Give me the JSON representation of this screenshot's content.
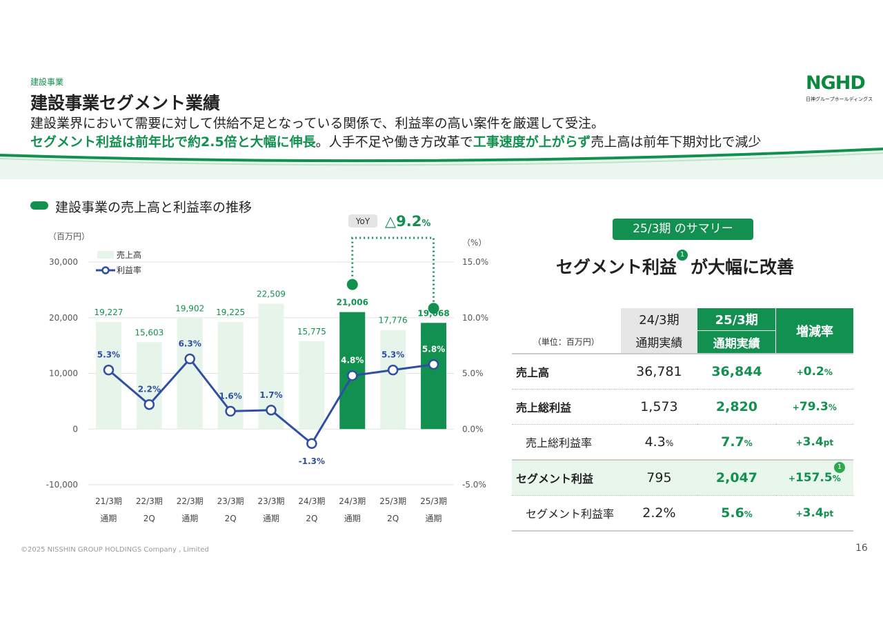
{
  "header": {
    "section_label": "建設事業",
    "title": "建設事業セグメント業績",
    "subtitle_1": "建設業界において需要に対して供給不足となっている関係で、利益率の高い案件を厳選して受注。",
    "subtitle_2_parts": [
      {
        "text": "セグメント利益は前年比で約2.5倍と大幅に伸長",
        "emphasis": true
      },
      {
        "text": "。人手不足や働き方改革で",
        "emphasis": false
      },
      {
        "text": "工事速度が上がらず",
        "emphasis": true
      },
      {
        "text": "売上高は前年下期対比で減少",
        "emphasis": false
      }
    ]
  },
  "logo": {
    "mark": "NGHD",
    "subtitle": "日神グループホールディングス"
  },
  "chart_section": {
    "heading": "建設事業の売上高と利益率の推移"
  },
  "chart_data": {
    "type": "bar+line",
    "categories": [
      [
        "21/3期",
        "通期"
      ],
      [
        "22/3期",
        "2Q"
      ],
      [
        "22/3期",
        "通期"
      ],
      [
        "23/3期",
        "2Q"
      ],
      [
        "23/3期",
        "通期"
      ],
      [
        "24/3期",
        "2Q"
      ],
      [
        "24/3期",
        "通期"
      ],
      [
        "25/3期",
        "2Q"
      ],
      [
        "25/3期",
        "通期"
      ]
    ],
    "series": [
      {
        "name": "売上高",
        "type": "bar",
        "axis": "left",
        "values": [
          19227,
          15603,
          19902,
          19225,
          22509,
          15775,
          21006,
          17776,
          19068
        ],
        "labels": [
          "19,227",
          "15,603",
          "19,902",
          "19,225",
          "22,509",
          "15,775",
          "21,006",
          "17,776",
          "19,068"
        ],
        "highlighted_indices": [
          6,
          8
        ]
      },
      {
        "name": "利益率",
        "type": "line",
        "axis": "right",
        "values": [
          5.3,
          2.2,
          6.3,
          1.6,
          1.7,
          -1.3,
          4.8,
          5.3,
          5.8
        ],
        "labels": [
          "5.3%",
          "2.2%",
          "6.3%",
          "1.6%",
          "1.7%",
          "-1.3%",
          "4.8%",
          "5.3%",
          "5.8%"
        ]
      }
    ],
    "left_axis": {
      "unit": "（百万円）",
      "range": [
        -10000,
        30000
      ],
      "ticks": [
        "30,000",
        "20,000",
        "10,000",
        "0",
        "-10,000"
      ]
    },
    "right_axis": {
      "unit": "（%）",
      "range": [
        -5.0,
        15.0
      ],
      "ticks": [
        "15.0%",
        "10.0%",
        "5.0%",
        "0.0%",
        "-5.0%"
      ]
    },
    "legend": {
      "placement": "top-left"
    },
    "annotation": {
      "badge": "YoY",
      "value": "△9.2",
      "unit": "%",
      "between": [
        6,
        8
      ]
    },
    "colors": {
      "bar": "#e6f4ea",
      "bar_highlight": "#11904f",
      "line": "#2f4fa3",
      "label_green": "#11904f",
      "label_blue": "#2f4fa3"
    }
  },
  "summary": {
    "pill": "25/3期 のサマリー",
    "headline_before": "セグメント利益",
    "headline_note": "1",
    "headline_after": "が大幅に改善",
    "unit": "（単位：百万円）",
    "headers": {
      "prev_top": "24/3期",
      "prev_bottom": "通期実績",
      "curr_top": "25/3期",
      "curr_bottom": "通期実績",
      "rate": "増減率"
    },
    "rows": [
      {
        "label": "売上高",
        "prev": "36,781",
        "curr": "36,844",
        "curr_unit": "",
        "rate_sign": "+",
        "rate": "0.2",
        "rate_unit": "%"
      },
      {
        "label": "売上総利益",
        "prev": "1,573",
        "curr": "2,820",
        "curr_unit": "",
        "rate_sign": "+",
        "rate": "79.3",
        "rate_unit": "%"
      },
      {
        "label": "売上総利益率",
        "prev": "4.3",
        "prev_unit": "%",
        "curr": "7.7",
        "curr_unit": "%",
        "rate_sign": "+",
        "rate": "3.4",
        "rate_unit": "pt"
      },
      {
        "label": "セグメント利益",
        "prev": "795",
        "curr": "2,047",
        "curr_unit": "",
        "rate_sign": "+",
        "rate": "157.5",
        "rate_unit": "%",
        "note": "1"
      },
      {
        "label": "セグメント利益率",
        "prev": "2.2%",
        "curr": "5.6",
        "curr_unit": "%",
        "rate_sign": "+",
        "rate": "3.4",
        "rate_unit": "pt"
      }
    ]
  },
  "footer": {
    "copyright": "©2025 NISSHIN GROUP HOLDINGS Company , Limited",
    "page_number": "16"
  }
}
